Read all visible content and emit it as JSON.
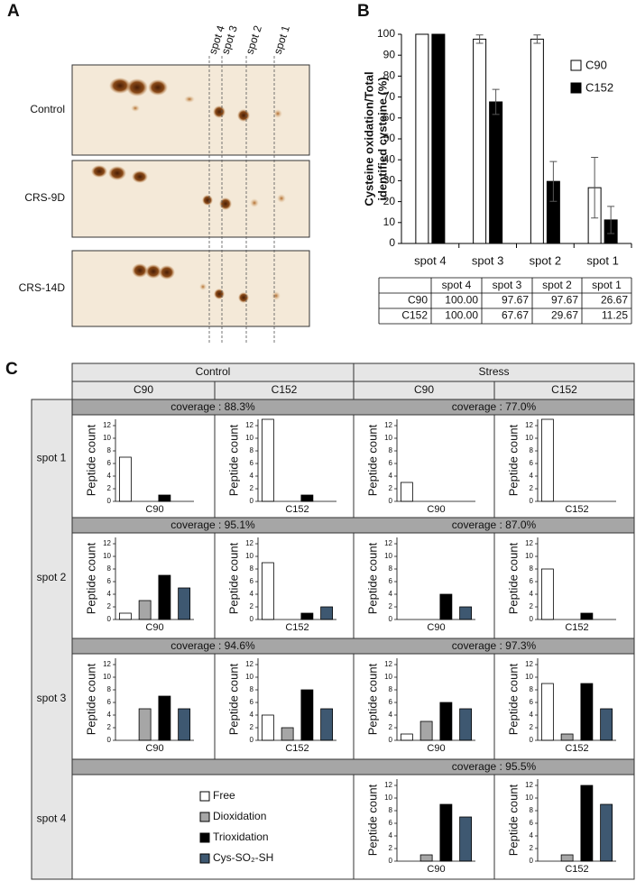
{
  "panel_a": {
    "label": "A",
    "spots": [
      "spot 4",
      "spot 3",
      "spot 2",
      "spot 1"
    ],
    "gels": [
      "Control",
      "CRS-9D",
      "CRS-14D"
    ]
  },
  "chart_data": {
    "type": "bar",
    "panel_label": "B",
    "ylabel": [
      "Cysteine oxidation/Total",
      "identified cysteine (%)"
    ],
    "categories": [
      "spot 4",
      "spot 3",
      "spot 2",
      "spot 1"
    ],
    "ylim": [
      0,
      100
    ],
    "yticks": [
      0,
      10,
      20,
      30,
      40,
      50,
      60,
      70,
      80,
      90,
      100
    ],
    "legend": "upper right",
    "series": [
      {
        "name": "C90",
        "color": "#ffffff",
        "values": [
          100,
          97.67,
          97.67,
          26.67
        ],
        "value_labels": [
          "100.00",
          "97.67",
          "97.67",
          "26.67"
        ],
        "errors": [
          0,
          2,
          2,
          14.5
        ]
      },
      {
        "name": "C152",
        "color": "#000000",
        "values": [
          100,
          67.67,
          29.67,
          11.25
        ],
        "value_labels": [
          "100.00",
          "67.67",
          "29.67",
          "11.25"
        ],
        "errors": [
          0,
          6,
          9.5,
          6.5
        ]
      }
    ]
  },
  "panel_c": {
    "label": "C",
    "groups": [
      "Control",
      "Stress"
    ],
    "columns": [
      "C90",
      "C152",
      "C90",
      "C152"
    ],
    "y_label": "Peptide count",
    "ylim": [
      0,
      13
    ],
    "yticks": [
      0,
      2,
      4,
      6,
      8,
      10,
      12
    ],
    "categories": [
      "Free",
      "Dioxidation",
      "Trioxidation",
      "Cys-SO₂-SH"
    ],
    "colors": [
      "#ffffff",
      "#a6a6a6",
      "#000000",
      "#3e5871"
    ],
    "rows": [
      {
        "name": "spot 1",
        "coverage": [
          "coverage : 88.3%",
          "coverage : 77.0%"
        ],
        "charts": [
          {
            "type": "bar",
            "values": [
              7,
              0,
              1,
              0
            ]
          },
          {
            "type": "bar",
            "values": [
              13,
              0,
              1,
              0
            ]
          },
          {
            "type": "bar",
            "values": [
              3,
              0,
              0,
              0
            ]
          },
          {
            "type": "bar",
            "values": [
              13,
              0,
              0,
              0
            ]
          }
        ]
      },
      {
        "name": "spot 2",
        "coverage": [
          "coverage : 95.1%",
          "coverage : 87.0%"
        ],
        "charts": [
          {
            "type": "bar",
            "values": [
              1,
              3,
              7,
              5
            ]
          },
          {
            "type": "bar",
            "values": [
              9,
              0,
              1,
              2
            ]
          },
          {
            "type": "bar",
            "values": [
              0,
              0,
              4,
              2
            ]
          },
          {
            "type": "bar",
            "values": [
              8,
              0,
              1,
              0
            ]
          }
        ]
      },
      {
        "name": "spot 3",
        "coverage": [
          "coverage : 94.6%",
          "coverage : 97.3%"
        ],
        "charts": [
          {
            "type": "bar",
            "values": [
              0,
              5,
              7,
              5
            ]
          },
          {
            "type": "bar",
            "values": [
              4,
              2,
              8,
              5
            ]
          },
          {
            "type": "bar",
            "values": [
              1,
              3,
              6,
              5
            ]
          },
          {
            "type": "bar",
            "values": [
              9,
              1,
              9,
              5
            ]
          }
        ]
      },
      {
        "name": "spot 4",
        "coverage": [
          null,
          "coverage : 95.5%"
        ],
        "charts": [
          null,
          null,
          {
            "type": "bar",
            "values": [
              0,
              1,
              9,
              7
            ]
          },
          {
            "type": "bar",
            "values": [
              0,
              1,
              12,
              9
            ]
          }
        ]
      }
    ]
  }
}
